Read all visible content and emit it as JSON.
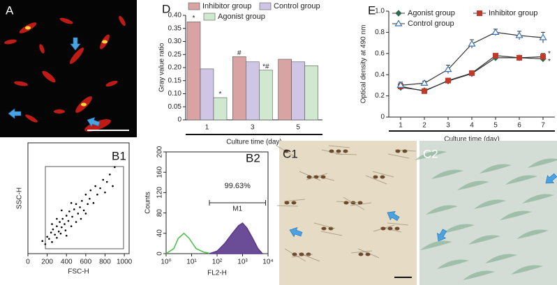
{
  "chart_data": [
    {
      "type": "image",
      "label": "A"
    },
    {
      "type": "bar",
      "label": "D",
      "xlabel": "Culture time (day)",
      "ylabel": "Gray value ratio",
      "categories": [
        "1",
        "3",
        "5"
      ],
      "series": [
        {
          "name": "Inhibitor group",
          "color": "#d9a3a3",
          "values": [
            0.375,
            0.242,
            0.232
          ],
          "annotations": [
            "*",
            "#",
            null
          ]
        },
        {
          "name": "Control group",
          "color": "#cfc6e6",
          "values": [
            0.195,
            0.222,
            0.222
          ],
          "annotations": [
            null,
            null,
            null
          ]
        },
        {
          "name": "Agonist group",
          "color": "#cfe8cf",
          "values": [
            0.085,
            0.19,
            0.207
          ],
          "annotations": [
            "*",
            "*#",
            null
          ]
        }
      ],
      "ylim": [
        0,
        0.4
      ],
      "yticks": [
        0,
        0.05,
        {
          "value": 0.1,
          "label": "0.10"
        },
        0.15,
        {
          "value": 0.2,
          "label": "0.20"
        },
        0.25,
        {
          "value": 0.3,
          "label": "0.30"
        },
        0.35,
        {
          "value": 0.4,
          "label": "0.40"
        }
      ]
    },
    {
      "type": "line",
      "label": "E",
      "xlabel": "Culture time (day)",
      "ylabel": "Optical density at 490 nm",
      "x": [
        1,
        2,
        3,
        4,
        5,
        6,
        7
      ],
      "xlim": [
        0.5,
        7.5
      ],
      "xticks": [
        1,
        2,
        3,
        4,
        5,
        6,
        7
      ],
      "ylim": [
        0,
        1
      ],
      "yticks": [
        0,
        0.2,
        0.4,
        0.6,
        0.8,
        {
          "value": 1,
          "label": "1.0"
        }
      ],
      "series": [
        {
          "name": "Agonist group",
          "color": "#2f6b4f",
          "marker": "diamond",
          "values": [
            0.28,
            0.25,
            0.34,
            0.41,
            0.56,
            0.56,
            0.55
          ],
          "errors": [
            0.03,
            0.01,
            0.02,
            0.02,
            0.02,
            0.02,
            0.02
          ],
          "annotations": [
            null,
            null,
            null,
            null,
            null,
            null,
            "*"
          ]
        },
        {
          "name": "Inhibitor group",
          "color": "#c0392b",
          "marker": "square",
          "values": [
            0.29,
            0.245,
            0.345,
            0.415,
            0.58,
            0.56,
            0.57
          ],
          "errors": [
            0.03,
            0.01,
            0.02,
            0.02,
            0.02,
            0.02,
            0.03
          ],
          "annotations": [
            null,
            null,
            null,
            null,
            null,
            null,
            "*"
          ]
        },
        {
          "name": "Control group",
          "color": "#3a6fb0",
          "marker": "triangle",
          "values": [
            0.3,
            0.32,
            0.45,
            0.69,
            0.8,
            0.77,
            0.75
          ],
          "errors": [
            0.03,
            0.02,
            0.04,
            0.04,
            0.03,
            0.04,
            0.05
          ],
          "annotations": [
            null,
            null,
            null,
            null,
            null,
            null,
            null
          ]
        }
      ]
    },
    {
      "type": "scatter",
      "label": "B1",
      "xlabel": "FSC-H",
      "ylabel": "SSC-H",
      "xlim": [
        0,
        1050
      ],
      "xticks": [
        0,
        200,
        400,
        600,
        800,
        1000
      ],
      "ylim": [
        0,
        1050
      ],
      "color": "#000000",
      "x": [
        150,
        180,
        200,
        220,
        240,
        250,
        260,
        280,
        300,
        300,
        320,
        330,
        340,
        350,
        360,
        380,
        390,
        400,
        400,
        420,
        430,
        450,
        460,
        480,
        500,
        500,
        520,
        540,
        550,
        560,
        580,
        600,
        620,
        640,
        650,
        680,
        700,
        720,
        750,
        780,
        800,
        820,
        850,
        880,
        900,
        250,
        300,
        350,
        450,
        600
      ],
      "values": [
        120,
        90,
        160,
        140,
        200,
        110,
        230,
        180,
        150,
        260,
        210,
        300,
        190,
        250,
        330,
        280,
        220,
        360,
        170,
        310,
        400,
        260,
        350,
        420,
        300,
        470,
        380,
        440,
        330,
        500,
        410,
        560,
        470,
        520,
        600,
        480,
        640,
        560,
        620,
        700,
        580,
        680,
        750,
        640,
        820,
        280,
        330,
        410,
        480,
        380
      ]
    },
    {
      "type": "line",
      "label": "B2",
      "xlabel": "FL2-H",
      "ylabel": "Counts",
      "xscale": "log",
      "xlim": [
        1,
        10000
      ],
      "xticks": [
        {
          "value": 1,
          "label": "10⁰"
        },
        {
          "value": 10,
          "label": "10¹"
        },
        {
          "value": 100,
          "label": "10²"
        },
        {
          "value": 1000,
          "label": "10³"
        },
        {
          "value": 10000,
          "label": "10⁴"
        }
      ],
      "ylim": [
        0,
        200
      ],
      "yticks": [
        0,
        40,
        80,
        120,
        160,
        200
      ],
      "percent_label": "99.63%",
      "gate_label": "M1",
      "gate_range": [
        50,
        8000
      ],
      "gate_y": 100,
      "series": [
        {
          "color": "#4cc24c",
          "fill": false,
          "x": [
            1,
            2,
            3,
            5,
            8,
            15,
            30,
            60
          ],
          "values": [
            0,
            10,
            30,
            40,
            30,
            10,
            3,
            0
          ]
        },
        {
          "color": "#5b3a8c",
          "fill": true,
          "x": [
            50,
            100,
            200,
            400,
            700,
            1000,
            1500,
            2500,
            4000,
            6000
          ],
          "values": [
            0,
            5,
            20,
            40,
            55,
            60,
            50,
            30,
            10,
            0
          ]
        }
      ]
    },
    {
      "type": "image",
      "label": "C1"
    },
    {
      "type": "image",
      "label": "C2"
    }
  ]
}
